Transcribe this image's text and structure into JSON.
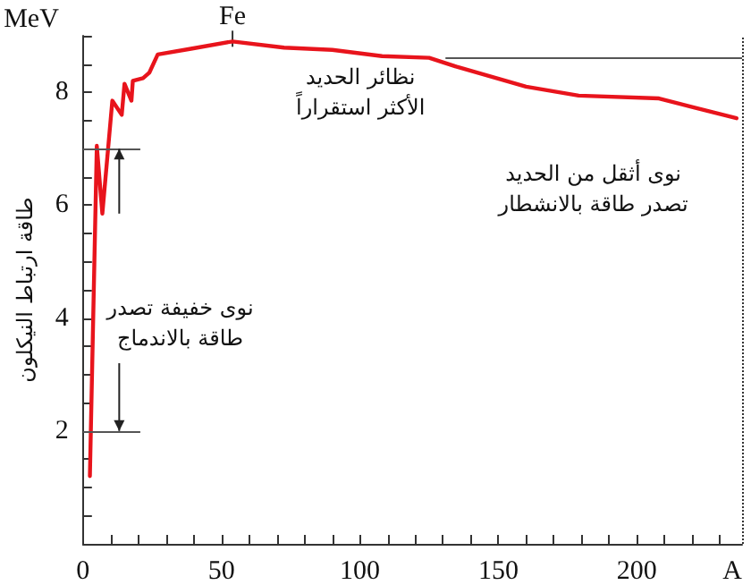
{
  "chart_data": {
    "type": "line",
    "xlabel": "A",
    "ylabel": "طاقة ارتباط النيكلون",
    "x": [
      2.5,
      5,
      7,
      10.6,
      14,
      15,
      17.5,
      18,
      21.7,
      24,
      27,
      39,
      54,
      72.6,
      90,
      108,
      125,
      135,
      160,
      179,
      208,
      220.6,
      236
    ],
    "series": [
      {
        "color": "#e8141c",
        "values": [
          1.2,
          7.05,
          5.85,
          7.85,
          7.6,
          8.15,
          7.85,
          8.2,
          8.25,
          8.35,
          8.67,
          8.77,
          8.9,
          8.79,
          8.75,
          8.64,
          8.61,
          8.45,
          8.1,
          7.94,
          7.89,
          7.73,
          7.54
        ]
      }
    ],
    "xlim": [
      0,
      238
    ],
    "xticks": [
      0,
      {
        "value": 10,
        "label": null
      },
      {
        "value": 20,
        "label": null
      },
      {
        "value": 30,
        "label": null
      },
      {
        "value": 40,
        "label": null
      },
      50,
      {
        "value": 60,
        "label": null
      },
      {
        "value": 70,
        "label": null
      },
      {
        "value": 80,
        "label": null
      },
      {
        "value": 90,
        "label": null
      },
      100,
      {
        "value": 110,
        "label": null
      },
      {
        "value": 120,
        "label": null
      },
      {
        "value": 130,
        "label": null
      },
      {
        "value": 140,
        "label": null
      },
      150,
      {
        "value": 160,
        "label": null
      },
      {
        "value": 170,
        "label": null
      },
      {
        "value": 180,
        "label": null
      },
      {
        "value": 190,
        "label": null
      },
      200,
      {
        "value": 210,
        "label": null
      },
      {
        "value": 220,
        "label": null
      },
      {
        "value": 230,
        "label": null
      }
    ],
    "ylim": [
      0,
      9
    ],
    "yticks": [
      {
        "value": 0.5,
        "label": null
      },
      {
        "value": 1,
        "label": null
      },
      {
        "value": 1.5,
        "label": null
      },
      2,
      {
        "value": 2.5,
        "label": null
      },
      {
        "value": 3,
        "label": null
      },
      {
        "value": 3.5,
        "label": null
      },
      4,
      {
        "value": 4.5,
        "label": null
      },
      {
        "value": 5,
        "label": null
      },
      {
        "value": 5.5,
        "label": null
      },
      6,
      {
        "value": 6.5,
        "label": null
      },
      {
        "value": 7,
        "label": null
      },
      {
        "value": 7.5,
        "label": null
      },
      8,
      {
        "value": 8.5,
        "label": null
      },
      {
        "value": 9,
        "label": null
      }
    ],
    "ref_lines": [
      {
        "axis": "y",
        "value": 8.6,
        "color": "#555555"
      },
      {
        "axis": "y",
        "value": 7,
        "color": "#555555"
      },
      {
        "axis": "y",
        "value": 2,
        "color": "#555555"
      },
      {
        "axis": "x",
        "value": 238,
        "color": "#333333",
        "line_style": "dotted"
      }
    ],
    "annotations": [
      "MeV",
      {
        "text": "Fe",
        "x": 54,
        "y": 8.9
      },
      "نظائر الحديد\nالأكثر استقراراً",
      "نوى أثقل من الحديد\nتصدر طاقة بالانشطار",
      "نوى خفيفة تصدر\nطاقة بالاندماج"
    ],
    "grid": false,
    "marker": "none",
    "line_style": "solid"
  }
}
